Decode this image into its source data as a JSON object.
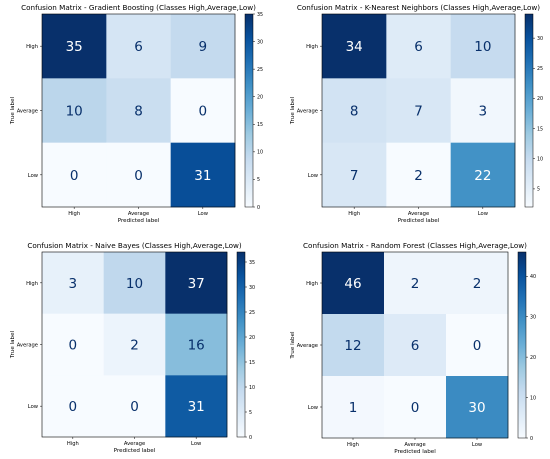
{
  "chart_data": [
    {
      "type": "heatmap",
      "title": "Confusion Matrix - Gradient Boosting (Classes High,Average,Low)",
      "xlabel": "Predicted label",
      "ylabel": "True label",
      "x_categories": [
        "High",
        "Average",
        "Low"
      ],
      "y_categories": [
        "High",
        "Average",
        "Low"
      ],
      "values": [
        [
          35,
          6,
          9
        ],
        [
          10,
          8,
          0
        ],
        [
          0,
          0,
          31
        ]
      ],
      "colorbar": {
        "ticks": [
          0,
          5,
          10,
          15,
          20,
          25,
          30,
          35
        ],
        "range": [
          0,
          35
        ],
        "colormap": "Blues"
      }
    },
    {
      "type": "heatmap",
      "title": "Confusion Matrix - K-Nearest Neighbors (Classes High,Average,Low)",
      "xlabel": "Predicted label",
      "ylabel": "True label",
      "x_categories": [
        "High",
        "Average",
        "Low"
      ],
      "y_categories": [
        "High",
        "Average",
        "Low"
      ],
      "values": [
        [
          34,
          6,
          10
        ],
        [
          8,
          7,
          3
        ],
        [
          7,
          2,
          22
        ]
      ],
      "colorbar": {
        "ticks": [
          5,
          10,
          15,
          20,
          25,
          30
        ],
        "range": [
          2,
          34
        ],
        "colormap": "Blues"
      }
    },
    {
      "type": "heatmap",
      "title": "Confusion Matrix - Naive Bayes (Classes High,Average,Low)",
      "xlabel": "Predicted label",
      "ylabel": "True label",
      "x_categories": [
        "High",
        "Average",
        "Low"
      ],
      "y_categories": [
        "High",
        "Average",
        "Low"
      ],
      "values": [
        [
          3,
          10,
          37
        ],
        [
          0,
          2,
          16
        ],
        [
          0,
          0,
          31
        ]
      ],
      "colorbar": {
        "ticks": [
          0,
          5,
          10,
          15,
          20,
          25,
          30,
          35
        ],
        "range": [
          0,
          37
        ],
        "colormap": "Blues"
      }
    },
    {
      "type": "heatmap",
      "title": "Confusion Matrix - Random Forest (Classes High,Average,Low)",
      "xlabel": "Predicted label",
      "ylabel": "True label",
      "x_categories": [
        "High",
        "Average",
        "Low"
      ],
      "y_categories": [
        "High",
        "Average",
        "Low"
      ],
      "values": [
        [
          46,
          2,
          2
        ],
        [
          12,
          6,
          0
        ],
        [
          1,
          0,
          30
        ]
      ],
      "colorbar": {
        "ticks": [
          0,
          10,
          20,
          30,
          40
        ],
        "range": [
          0,
          46
        ],
        "colormap": "Blues"
      }
    }
  ]
}
